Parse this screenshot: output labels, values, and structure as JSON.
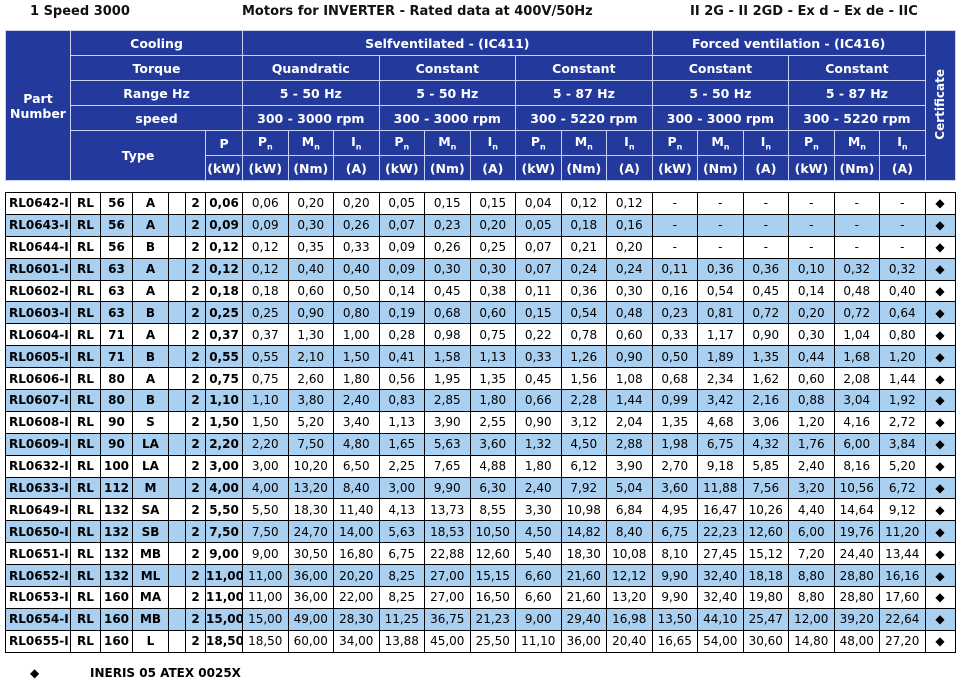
{
  "header": {
    "left": "1 Speed 3000",
    "center": "Motors for INVERTER - Rated data at 400V/50Hz",
    "right": "II 2G - II 2GD - Ex d – Ex de - IIC"
  },
  "table": {
    "part_number": "Part Number",
    "certificate": "Certificate",
    "labels": [
      "Cooling",
      "Torque",
      "Range Hz",
      "speed"
    ],
    "type": "Type",
    "p": "P",
    "p_unit": "(kW)",
    "cooling": [
      "Selfventilated - (IC411)",
      "Forced ventilation - (IC416)"
    ],
    "groups": [
      {
        "torque": "Quandratic",
        "range": "5 - 50 Hz",
        "speed": "300 - 3000 rpm"
      },
      {
        "torque": "Constant",
        "range": "5 - 50 Hz",
        "speed": "300 - 3000 rpm"
      },
      {
        "torque": "Constant",
        "range": "5 - 87 Hz",
        "speed": "300 - 5220 rpm"
      },
      {
        "torque": "Constant",
        "range": "5 - 50 Hz",
        "speed": "300 - 3000 rpm"
      },
      {
        "torque": "Constant",
        "range": "5 - 87 Hz",
        "speed": "300 - 5220 rpm"
      }
    ],
    "quantities": [
      {
        "sym": "P",
        "sub": "n",
        "unit": "(kW)"
      },
      {
        "sym": "M",
        "sub": "n",
        "unit": "(Nm)"
      },
      {
        "sym": "I",
        "sub": "n",
        "unit": "(A)"
      }
    ],
    "rows": [
      [
        "RL0642-I",
        "RL",
        "56",
        "A",
        "2",
        "0,06",
        "0,06",
        "0,20",
        "0,20",
        "0,05",
        "0,15",
        "0,15",
        "0,04",
        "0,12",
        "0,12",
        "-",
        "-",
        "-",
        "-",
        "-",
        "-",
        "◆"
      ],
      [
        "RL0643-I",
        "RL",
        "56",
        "A",
        "2",
        "0,09",
        "0,09",
        "0,30",
        "0,26",
        "0,07",
        "0,23",
        "0,20",
        "0,05",
        "0,18",
        "0,16",
        "-",
        "-",
        "-",
        "-",
        "-",
        "-",
        "◆"
      ],
      [
        "RL0644-I",
        "RL",
        "56",
        "B",
        "2",
        "0,12",
        "0,12",
        "0,35",
        "0,33",
        "0,09",
        "0,26",
        "0,25",
        "0,07",
        "0,21",
        "0,20",
        "-",
        "-",
        "-",
        "-",
        "-",
        "-",
        "◆"
      ],
      [
        "RL0601-I",
        "RL",
        "63",
        "A",
        "2",
        "0,12",
        "0,12",
        "0,40",
        "0,40",
        "0,09",
        "0,30",
        "0,30",
        "0,07",
        "0,24",
        "0,24",
        "0,11",
        "0,36",
        "0,36",
        "0,10",
        "0,32",
        "0,32",
        "◆"
      ],
      [
        "RL0602-I",
        "RL",
        "63",
        "A",
        "2",
        "0,18",
        "0,18",
        "0,60",
        "0,50",
        "0,14",
        "0,45",
        "0,38",
        "0,11",
        "0,36",
        "0,30",
        "0,16",
        "0,54",
        "0,45",
        "0,14",
        "0,48",
        "0,40",
        "◆"
      ],
      [
        "RL0603-I",
        "RL",
        "63",
        "B",
        "2",
        "0,25",
        "0,25",
        "0,90",
        "0,80",
        "0,19",
        "0,68",
        "0,60",
        "0,15",
        "0,54",
        "0,48",
        "0,23",
        "0,81",
        "0,72",
        "0,20",
        "0,72",
        "0,64",
        "◆"
      ],
      [
        "RL0604-I",
        "RL",
        "71",
        "A",
        "2",
        "0,37",
        "0,37",
        "1,30",
        "1,00",
        "0,28",
        "0,98",
        "0,75",
        "0,22",
        "0,78",
        "0,60",
        "0,33",
        "1,17",
        "0,90",
        "0,30",
        "1,04",
        "0,80",
        "◆"
      ],
      [
        "RL0605-I",
        "RL",
        "71",
        "B",
        "2",
        "0,55",
        "0,55",
        "2,10",
        "1,50",
        "0,41",
        "1,58",
        "1,13",
        "0,33",
        "1,26",
        "0,90",
        "0,50",
        "1,89",
        "1,35",
        "0,44",
        "1,68",
        "1,20",
        "◆"
      ],
      [
        "RL0606-I",
        "RL",
        "80",
        "A",
        "2",
        "0,75",
        "0,75",
        "2,60",
        "1,80",
        "0,56",
        "1,95",
        "1,35",
        "0,45",
        "1,56",
        "1,08",
        "0,68",
        "2,34",
        "1,62",
        "0,60",
        "2,08",
        "1,44",
        "◆"
      ],
      [
        "RL0607-I",
        "RL",
        "80",
        "B",
        "2",
        "1,10",
        "1,10",
        "3,80",
        "2,40",
        "0,83",
        "2,85",
        "1,80",
        "0,66",
        "2,28",
        "1,44",
        "0,99",
        "3,42",
        "2,16",
        "0,88",
        "3,04",
        "1,92",
        "◆"
      ],
      [
        "RL0608-I",
        "RL",
        "90",
        "S",
        "2",
        "1,50",
        "1,50",
        "5,20",
        "3,40",
        "1,13",
        "3,90",
        "2,55",
        "0,90",
        "3,12",
        "2,04",
        "1,35",
        "4,68",
        "3,06",
        "1,20",
        "4,16",
        "2,72",
        "◆"
      ],
      [
        "RL0609-I",
        "RL",
        "90",
        "LA",
        "2",
        "2,20",
        "2,20",
        "7,50",
        "4,80",
        "1,65",
        "5,63",
        "3,60",
        "1,32",
        "4,50",
        "2,88",
        "1,98",
        "6,75",
        "4,32",
        "1,76",
        "6,00",
        "3,84",
        "◆"
      ],
      [
        "RL0632-I",
        "RL",
        "100",
        "LA",
        "2",
        "3,00",
        "3,00",
        "10,20",
        "6,50",
        "2,25",
        "7,65",
        "4,88",
        "1,80",
        "6,12",
        "3,90",
        "2,70",
        "9,18",
        "5,85",
        "2,40",
        "8,16",
        "5,20",
        "◆"
      ],
      [
        "RL0633-I",
        "RL",
        "112",
        "M",
        "2",
        "4,00",
        "4,00",
        "13,20",
        "8,40",
        "3,00",
        "9,90",
        "6,30",
        "2,40",
        "7,92",
        "5,04",
        "3,60",
        "11,88",
        "7,56",
        "3,20",
        "10,56",
        "6,72",
        "◆"
      ],
      [
        "RL0649-I",
        "RL",
        "132",
        "SA",
        "2",
        "5,50",
        "5,50",
        "18,30",
        "11,40",
        "4,13",
        "13,73",
        "8,55",
        "3,30",
        "10,98",
        "6,84",
        "4,95",
        "16,47",
        "10,26",
        "4,40",
        "14,64",
        "9,12",
        "◆"
      ],
      [
        "RL0650-I",
        "RL",
        "132",
        "SB",
        "2",
        "7,50",
        "7,50",
        "24,70",
        "14,00",
        "5,63",
        "18,53",
        "10,50",
        "4,50",
        "14,82",
        "8,40",
        "6,75",
        "22,23",
        "12,60",
        "6,00",
        "19,76",
        "11,20",
        "◆"
      ],
      [
        "RL0651-I",
        "RL",
        "132",
        "MB",
        "2",
        "9,00",
        "9,00",
        "30,50",
        "16,80",
        "6,75",
        "22,88",
        "12,60",
        "5,40",
        "18,30",
        "10,08",
        "8,10",
        "27,45",
        "15,12",
        "7,20",
        "24,40",
        "13,44",
        "◆"
      ],
      [
        "RL0652-I",
        "RL",
        "132",
        "ML",
        "2",
        "11,00",
        "11,00",
        "36,00",
        "20,20",
        "8,25",
        "27,00",
        "15,15",
        "6,60",
        "21,60",
        "12,12",
        "9,90",
        "32,40",
        "18,18",
        "8,80",
        "28,80",
        "16,16",
        "◆"
      ],
      [
        "RL0653-I",
        "RL",
        "160",
        "MA",
        "2",
        "11,00",
        "11,00",
        "36,00",
        "22,00",
        "8,25",
        "27,00",
        "16,50",
        "6,60",
        "21,60",
        "13,20",
        "9,90",
        "32,40",
        "19,80",
        "8,80",
        "28,80",
        "17,60",
        "◆"
      ],
      [
        "RL0654-I",
        "RL",
        "160",
        "MB",
        "2",
        "15,00",
        "15,00",
        "49,00",
        "28,30",
        "11,25",
        "36,75",
        "21,23",
        "9,00",
        "29,40",
        "16,98",
        "13,50",
        "44,10",
        "25,47",
        "12,00",
        "39,20",
        "22,64",
        "◆"
      ],
      [
        "RL0655-I",
        "RL",
        "160",
        "L",
        "2",
        "18,50",
        "18,50",
        "60,00",
        "34,00",
        "13,88",
        "45,00",
        "25,50",
        "11,10",
        "36,00",
        "20,40",
        "16,65",
        "54,00",
        "30,60",
        "14,80",
        "48,00",
        "27,20",
        "◆"
      ]
    ]
  },
  "footer": {
    "symbol": "◆",
    "text": "INERIS 05 ATEX 0025X"
  }
}
